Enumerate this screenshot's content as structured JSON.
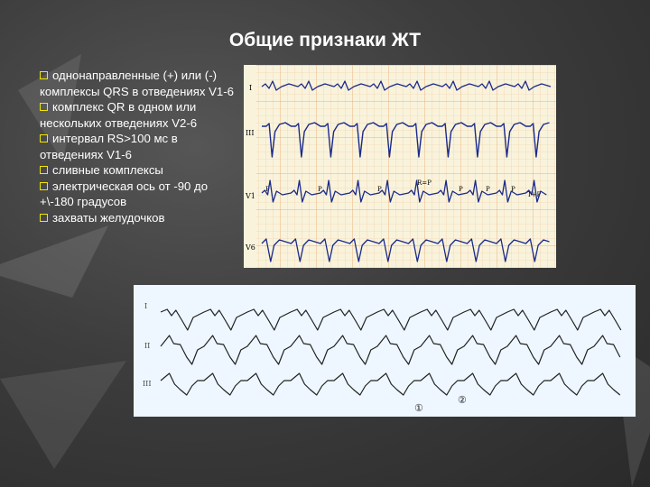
{
  "slide": {
    "title": "Общие признаки ЖТ"
  },
  "bullets": [
    "однонаправленные (+) или (-) комплексы QRS в отведениях V1-6",
    "комплекс QR в одном или нескольких отведениях V2-6",
    "интервал RS>100 мс в отведениях V1-6",
    "сливные комплексы",
    "электрическая ось от -90 до +\\-180 градусов",
    "захваты желудочков"
  ],
  "ecg_top": {
    "leads": [
      "I",
      "III",
      "V1",
      "V6"
    ],
    "annotations": [
      "P",
      "P",
      "P",
      "R=P",
      "P",
      "P",
      "P",
      "T+P"
    ]
  },
  "ecg_bottom": {
    "leads": [
      "I",
      "II",
      "III"
    ],
    "markers": [
      "①",
      "②"
    ]
  },
  "colors": {
    "title": "#ffffff",
    "checkbox": "#f2e600",
    "ecg_top_bg": "#f9f3dc",
    "ecg_bottom_bg": "#eef7ff",
    "ecg_top_trace": "#1a2a8a",
    "ecg_bottom_trace": "#222222"
  }
}
